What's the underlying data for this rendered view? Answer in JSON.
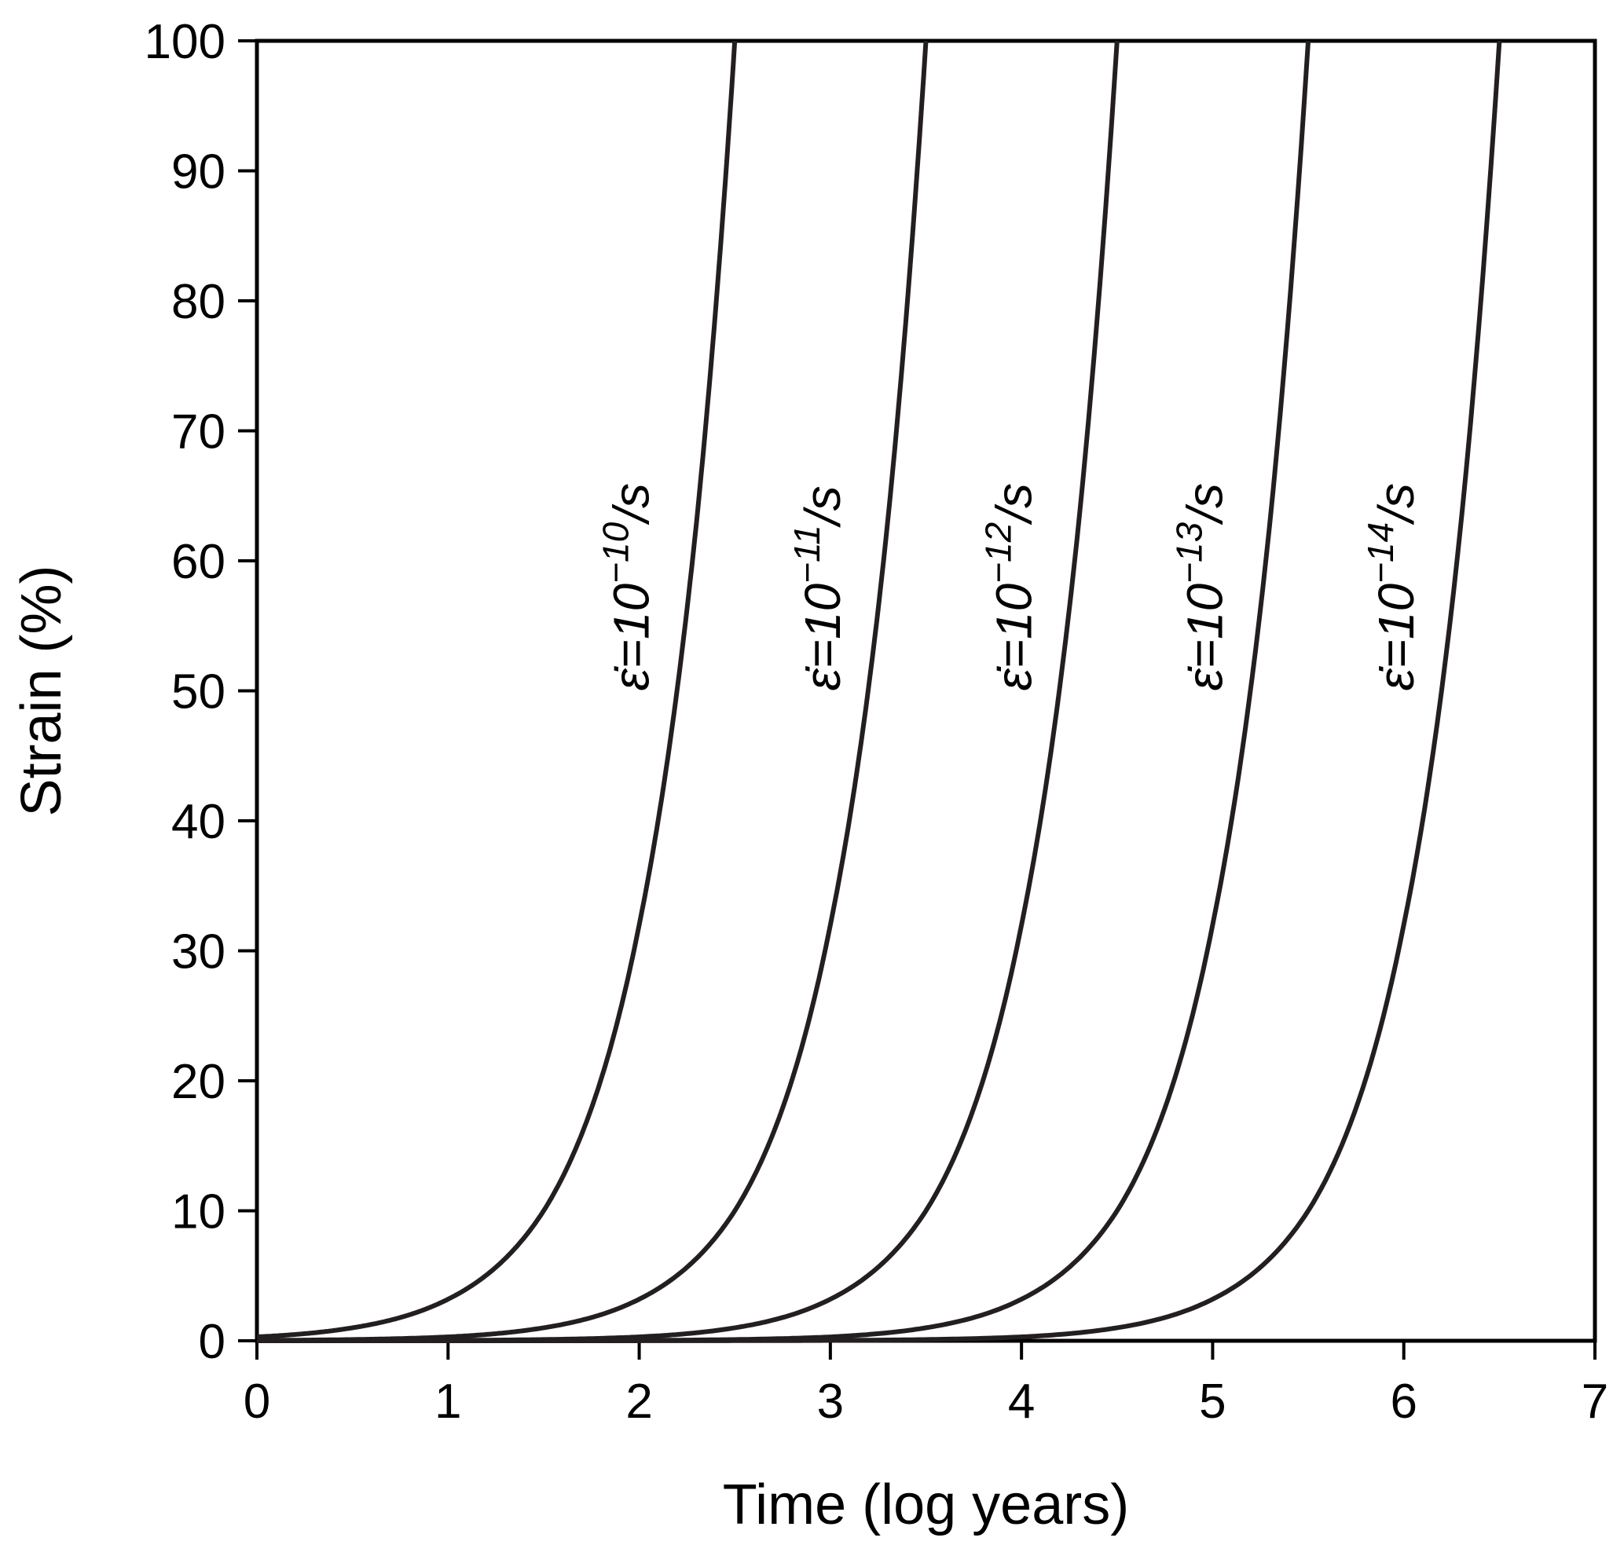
{
  "chart_data": {
    "type": "line",
    "title": "",
    "xlabel": "Time (log years)",
    "ylabel": "Strain (%)",
    "xlim": [
      0,
      7
    ],
    "ylim": [
      0,
      100
    ],
    "x_ticks": [
      "0",
      "1",
      "2",
      "3",
      "4",
      "5",
      "6",
      "7"
    ],
    "y_ticks": [
      "0",
      "10",
      "20",
      "30",
      "40",
      "50",
      "60",
      "70",
      "80",
      "90",
      "100"
    ],
    "grid": false,
    "legend": "none",
    "line_color": "#231f20",
    "series": [
      {
        "name": "ε̇=10⁻¹⁰/s",
        "label": {
          "base": "ε̇=10",
          "exp": "−10",
          "unit": "/s"
        },
        "x": [
          0,
          0.5,
          1,
          1.5,
          2,
          2.3,
          2.5
        ],
        "y": [
          0.3,
          1.0,
          3.2,
          10,
          32,
          63,
          100
        ]
      },
      {
        "name": "ε̇=10⁻¹¹/s",
        "label": {
          "base": "ε̇=10",
          "exp": "−11",
          "unit": "/s"
        },
        "x": [
          0,
          1,
          1.5,
          2,
          2.5,
          3,
          3.3,
          3.5
        ],
        "y": [
          0.03,
          0.3,
          1.0,
          3.2,
          10,
          32,
          63,
          100
        ]
      },
      {
        "name": "ε̇=10⁻¹²/s",
        "label": {
          "base": "ε̇=10",
          "exp": "−12",
          "unit": "/s"
        },
        "x": [
          0,
          2,
          2.5,
          3,
          3.5,
          4,
          4.3,
          4.5
        ],
        "y": [
          0.003,
          0.3,
          1.0,
          3.2,
          10,
          32,
          63,
          100
        ]
      },
      {
        "name": "ε̇=10⁻¹³/s",
        "label": {
          "base": "ε̇=10",
          "exp": "−13",
          "unit": "/s"
        },
        "x": [
          0,
          3,
          3.5,
          4,
          4.5,
          5,
          5.3,
          5.5
        ],
        "y": [
          0.0003,
          0.3,
          1.0,
          3.2,
          10,
          32,
          63,
          100
        ]
      },
      {
        "name": "ε̇=10⁻¹⁴/s",
        "label": {
          "base": "ε̇=10",
          "exp": "−14",
          "unit": "/s"
        },
        "x": [
          0,
          4,
          4.5,
          5,
          5.5,
          6,
          6.3,
          6.5
        ],
        "y": [
          3e-05,
          0.3,
          1.0,
          3.2,
          10,
          32,
          63,
          100
        ]
      }
    ]
  }
}
